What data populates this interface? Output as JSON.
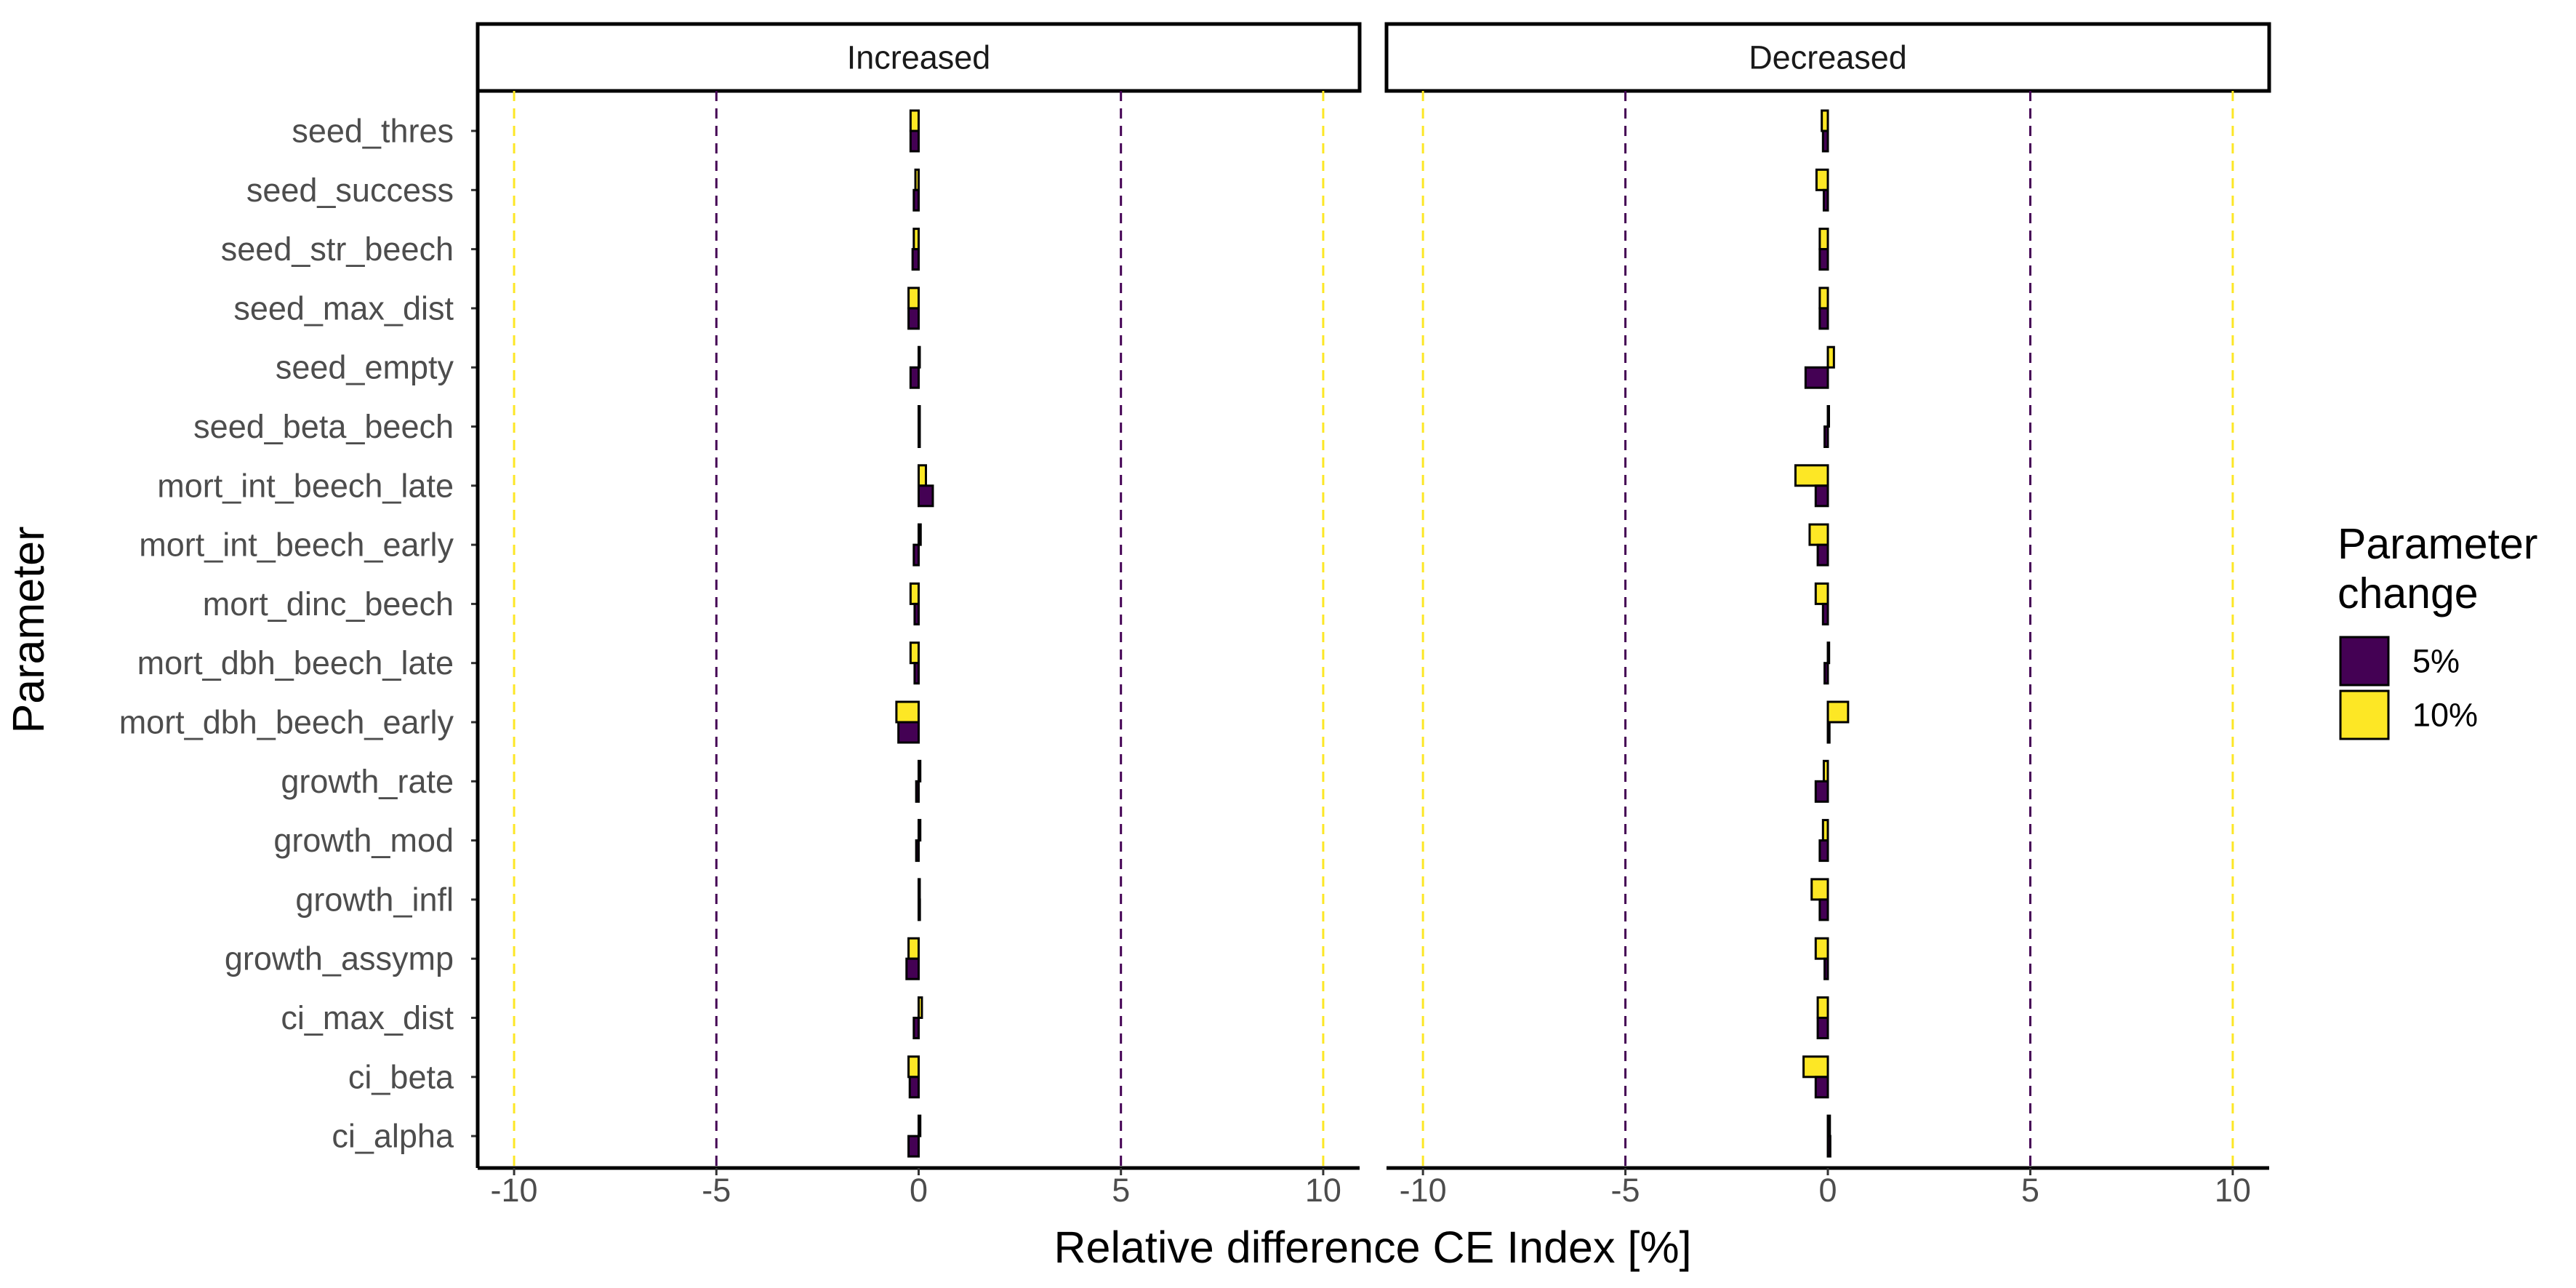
{
  "chart_data": {
    "type": "bar",
    "orientation": "horizontal",
    "xlabel": "Relative difference CE Index [%]",
    "ylabel": "Parameter",
    "xlim": [
      -10.9,
      10.9
    ],
    "xticks": [
      -10,
      -5,
      0,
      5,
      10
    ],
    "xtick_labels": [
      "-10",
      "-5",
      "0",
      "5",
      "10"
    ],
    "reference_lines": [
      {
        "x": -10,
        "color": "#FDE725",
        "style": "dashed"
      },
      {
        "x": -5,
        "color": "#440154",
        "style": "dashed"
      },
      {
        "x": 5,
        "color": "#440154",
        "style": "dashed"
      },
      {
        "x": 10,
        "color": "#FDE725",
        "style": "dashed"
      }
    ],
    "grid": false,
    "categories": [
      "seed_thres",
      "seed_success",
      "seed_str_beech",
      "seed_max_dist",
      "seed_empty",
      "seed_beta_beech",
      "mort_int_beech_late",
      "mort_int_beech_early",
      "mort_dinc_beech",
      "mort_dbh_beech_late",
      "mort_dbh_beech_early",
      "growth_rate",
      "growth_mod",
      "growth_infl",
      "growth_assymp",
      "ci_max_dist",
      "ci_beta",
      "ci_alpha"
    ],
    "legend": {
      "title": "Parameter change",
      "title_lines": [
        "Parameter",
        "change"
      ],
      "position": "right",
      "items": [
        {
          "label": "5%",
          "color": "#440154"
        },
        {
          "label": "10%",
          "color": "#FDE725"
        }
      ]
    },
    "panels": [
      {
        "title": "Increased",
        "series": [
          {
            "name": "5%",
            "color": "#440154",
            "values": [
              -0.2,
              -0.12,
              -0.15,
              -0.25,
              -0.2,
              0.0,
              0.35,
              -0.12,
              -0.1,
              -0.1,
              -0.5,
              -0.06,
              -0.06,
              0.03,
              -0.3,
              -0.12,
              -0.22,
              -0.25
            ]
          },
          {
            "name": "10%",
            "color": "#FDE725",
            "values": [
              -0.2,
              -0.08,
              -0.12,
              -0.25,
              0.0,
              0.0,
              0.18,
              0.05,
              -0.2,
              -0.2,
              -0.55,
              0.04,
              0.04,
              0.02,
              -0.25,
              0.08,
              -0.25,
              0.04
            ]
          }
        ]
      },
      {
        "title": "Decreased",
        "series": [
          {
            "name": "5%",
            "color": "#440154",
            "values": [
              -0.12,
              -0.1,
              -0.2,
              -0.2,
              -0.55,
              -0.08,
              -0.3,
              -0.25,
              -0.12,
              -0.08,
              0.04,
              -0.3,
              -0.2,
              -0.2,
              -0.08,
              -0.25,
              -0.3,
              0.06
            ]
          },
          {
            "name": "10%",
            "color": "#FDE725",
            "values": [
              -0.15,
              -0.28,
              -0.2,
              -0.2,
              0.15,
              0.0,
              -0.8,
              -0.45,
              -0.3,
              0.03,
              0.5,
              -0.1,
              -0.12,
              -0.4,
              -0.3,
              -0.25,
              -0.6,
              0.05
            ]
          }
        ]
      }
    ]
  }
}
